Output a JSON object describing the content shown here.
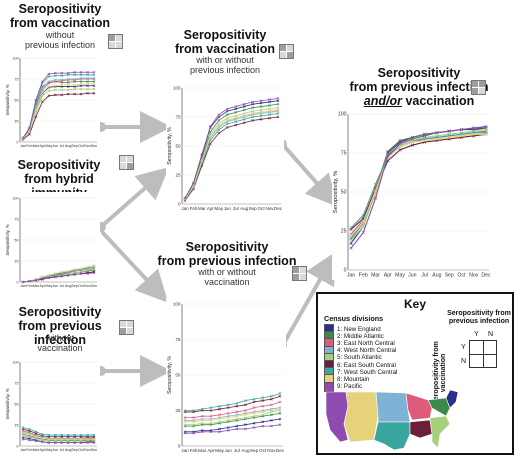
{
  "panels": {
    "vacc_only": {
      "title_lines": [
        "Seropositivity",
        "from vaccination"
      ],
      "sub_lines": [
        "without",
        "previous infection"
      ],
      "ylabel": "Seropositivity, %",
      "months": [
        "Jan",
        "Feb",
        "Mar",
        "Apr",
        "May",
        "Jun",
        "Jul",
        "Aug",
        "Sep",
        "Oct",
        "Nov",
        "Dec"
      ],
      "yticks": [
        "0",
        "25",
        "50",
        "75",
        "100"
      ]
    },
    "hybrid": {
      "title_lines": [
        "Seropositivity",
        "from hybrid immunity"
      ],
      "ylabel": "Seropositivity, %",
      "months": [
        "Jan",
        "Feb",
        "Mar",
        "Apr",
        "May",
        "Jun",
        "Jul",
        "Aug",
        "Sep",
        "Oct",
        "Nov",
        "Dec"
      ],
      "yticks": [
        "0",
        "25",
        "50",
        "75",
        "100"
      ]
    },
    "infection_only": {
      "title_lines": [
        "Seropositivity",
        "from previous infection"
      ],
      "sub_lines": [
        "without",
        "vaccination"
      ],
      "ylabel": "Seropositivity, %",
      "months": [
        "Jan",
        "Feb",
        "Mar",
        "Apr",
        "May",
        "Jun",
        "Jul",
        "Aug",
        "Sep",
        "Oct",
        "Nov",
        "Dec"
      ],
      "yticks": [
        "0",
        "25",
        "50",
        "75",
        "100"
      ]
    },
    "vacc_any": {
      "title_lines": [
        "Seropositivity",
        "from vaccination"
      ],
      "sub_lines": [
        "with or without",
        "previous infection"
      ],
      "ylabel": "Seropositivity, %",
      "months": [
        "Jan",
        "Feb",
        "Mar",
        "Apr",
        "May",
        "Jun",
        "Jul",
        "Aug",
        "Sep",
        "Oct",
        "Nov",
        "Dec"
      ],
      "yticks": [
        "0",
        "25",
        "50",
        "75",
        "100"
      ]
    },
    "infection_any": {
      "title_lines": [
        "Seropositivity",
        "from previous infection"
      ],
      "sub_lines": [
        "with or without",
        "vaccination"
      ],
      "ylabel": "Seropositivity, %",
      "months": [
        "Jan",
        "Feb",
        "Mar",
        "Apr",
        "May",
        "Jun",
        "Jul",
        "Aug",
        "Sep",
        "Oct",
        "Nov",
        "Dec"
      ],
      "yticks": [
        "0",
        "25",
        "50",
        "75",
        "100"
      ]
    },
    "either": {
      "title_lines": [
        "Seropositivity",
        "from previous infection"
      ],
      "title_line3_pre": "and/or",
      "title_line3_post": " vaccination",
      "ylabel": "Seropositivity, %",
      "months": [
        "Jan",
        "Feb",
        "Mar",
        "Apr",
        "May",
        "Jun",
        "Jul",
        "Aug",
        "Sep",
        "Oct",
        "Nov",
        "Dec"
      ],
      "yticks": [
        "0",
        "25",
        "50",
        "75",
        "100"
      ]
    }
  },
  "key": {
    "title": "Key",
    "census_title": "Census divisions",
    "divisions": [
      {
        "label": "1: New England",
        "color": "#2b2d8f"
      },
      {
        "label": "2: Middle Atlantic",
        "color": "#3b8a4a"
      },
      {
        "label": "3: East North Central",
        "color": "#e05a7b"
      },
      {
        "label": "4: West North Central",
        "color": "#7fb3d5"
      },
      {
        "label": "5: South Atlantic",
        "color": "#a6d07a"
      },
      {
        "label": "6: East South Central",
        "color": "#6b1f3a"
      },
      {
        "label": "7: West South Central",
        "color": "#3aa6a0"
      },
      {
        "label": "8: Mountain",
        "color": "#e6d27a"
      },
      {
        "label": "9: Pacific",
        "color": "#8e4bb0"
      }
    ],
    "vacc_axis": "Seropositivity from vaccination",
    "inf_title_lines": [
      "Seropositivity from",
      "previous infection"
    ],
    "grid_y": "Y",
    "grid_n": "N"
  },
  "chart_data": [
    {
      "type": "line",
      "name_ref": "vacc_only",
      "x": [
        "Jan",
        "Feb",
        "Mar",
        "Apr",
        "May",
        "Jun",
        "Jul",
        "Aug",
        "Sep",
        "Oct",
        "Nov",
        "Dec"
      ],
      "ylim": [
        0,
        100
      ],
      "series": [
        {
          "values": [
            4,
            12,
            38,
            58,
            65,
            66,
            66,
            66,
            66,
            67,
            67,
            67
          ]
        },
        {
          "values": [
            5,
            15,
            45,
            66,
            71,
            72,
            71,
            71,
            72,
            72,
            72,
            72
          ]
        },
        {
          "values": [
            4,
            13,
            40,
            62,
            70,
            72,
            73,
            74,
            74,
            75,
            75,
            75
          ]
        },
        {
          "values": [
            5,
            14,
            42,
            64,
            72,
            74,
            74,
            75,
            75,
            76,
            76,
            76
          ]
        },
        {
          "values": [
            4,
            11,
            35,
            55,
            61,
            62,
            62,
            62,
            63,
            63,
            63,
            63
          ]
        },
        {
          "values": [
            3,
            9,
            30,
            48,
            55,
            56,
            56,
            57,
            57,
            57,
            58,
            58
          ]
        },
        {
          "values": [
            5,
            16,
            48,
            70,
            78,
            79,
            79,
            80,
            80,
            80,
            80,
            80
          ]
        },
        {
          "values": [
            4,
            12,
            38,
            59,
            66,
            67,
            68,
            68,
            68,
            69,
            69,
            69
          ]
        },
        {
          "values": [
            5,
            17,
            50,
            72,
            81,
            82,
            82,
            82,
            83,
            83,
            83,
            83
          ]
        }
      ]
    },
    {
      "type": "line",
      "name_ref": "hybrid",
      "x": [
        "Jan",
        "Feb",
        "Mar",
        "Apr",
        "May",
        "Jun",
        "Jul",
        "Aug",
        "Sep",
        "Oct",
        "Nov",
        "Dec"
      ],
      "ylim": [
        0,
        100
      ],
      "series": [
        {
          "values": [
            0,
            1,
            2,
            4,
            5,
            6,
            7,
            8,
            9,
            10,
            11,
            12
          ]
        },
        {
          "values": [
            0,
            1,
            3,
            5,
            6,
            8,
            9,
            10,
            11,
            12,
            13,
            14
          ]
        },
        {
          "values": [
            0,
            1,
            3,
            5,
            7,
            9,
            10,
            11,
            13,
            14,
            15,
            16
          ]
        },
        {
          "values": [
            0,
            1,
            3,
            6,
            8,
            10,
            11,
            12,
            14,
            15,
            16,
            18
          ]
        },
        {
          "values": [
            0,
            1,
            2,
            4,
            6,
            7,
            8,
            10,
            11,
            12,
            14,
            15
          ]
        },
        {
          "values": [
            0,
            1,
            2,
            3,
            5,
            6,
            7,
            8,
            9,
            10,
            11,
            12
          ]
        },
        {
          "values": [
            0,
            1,
            3,
            5,
            7,
            9,
            11,
            12,
            14,
            15,
            17,
            18
          ]
        },
        {
          "values": [
            0,
            1,
            3,
            6,
            8,
            10,
            12,
            13,
            15,
            16,
            18,
            20
          ]
        },
        {
          "values": [
            0,
            1,
            2,
            4,
            5,
            6,
            7,
            8,
            9,
            10,
            10,
            11
          ]
        }
      ]
    },
    {
      "type": "line",
      "name_ref": "infection_only",
      "x": [
        "Jan",
        "Feb",
        "Mar",
        "Apr",
        "May",
        "Jun",
        "Jul",
        "Aug",
        "Sep",
        "Oct",
        "Nov",
        "Dec"
      ],
      "ylim": [
        0,
        100
      ],
      "series": [
        {
          "values": [
            10,
            9,
            7,
            5,
            4,
            4,
            4,
            4,
            4,
            4,
            5,
            5
          ]
        },
        {
          "values": [
            14,
            12,
            10,
            8,
            7,
            7,
            7,
            7,
            7,
            7,
            7,
            7
          ]
        },
        {
          "values": [
            18,
            16,
            13,
            10,
            9,
            9,
            9,
            9,
            9,
            9,
            9,
            9
          ]
        },
        {
          "values": [
            16,
            15,
            12,
            10,
            9,
            9,
            9,
            9,
            9,
            9,
            10,
            10
          ]
        },
        {
          "values": [
            12,
            11,
            9,
            7,
            6,
            6,
            6,
            6,
            6,
            6,
            6,
            6
          ]
        },
        {
          "values": [
            20,
            18,
            15,
            12,
            11,
            11,
            11,
            11,
            11,
            11,
            11,
            11
          ]
        },
        {
          "values": [
            22,
            20,
            17,
            14,
            13,
            13,
            13,
            13,
            13,
            13,
            13,
            13
          ]
        },
        {
          "values": [
            15,
            14,
            11,
            9,
            8,
            8,
            8,
            8,
            8,
            8,
            8,
            8
          ]
        },
        {
          "values": [
            8,
            7,
            6,
            5,
            4,
            4,
            4,
            4,
            4,
            4,
            4,
            4
          ]
        }
      ]
    },
    {
      "type": "line",
      "name_ref": "vacc_any",
      "x": [
        "Jan",
        "Feb",
        "Mar",
        "Apr",
        "May",
        "Jun",
        "Jul",
        "Aug",
        "Sep",
        "Oct",
        "Nov",
        "Dec"
      ],
      "ylim": [
        0,
        100
      ],
      "series": [
        {
          "values": [
            5,
            18,
            42,
            66,
            75,
            80,
            82,
            84,
            86,
            87,
            88,
            89
          ]
        },
        {
          "values": [
            5,
            17,
            40,
            62,
            72,
            77,
            79,
            81,
            83,
            84,
            85,
            86
          ]
        },
        {
          "values": [
            4,
            15,
            37,
            58,
            67,
            72,
            74,
            76,
            78,
            79,
            80,
            81
          ]
        },
        {
          "values": [
            4,
            15,
            36,
            57,
            66,
            71,
            73,
            75,
            77,
            78,
            79,
            80
          ]
        },
        {
          "values": [
            4,
            16,
            38,
            60,
            69,
            74,
            76,
            78,
            80,
            81,
            82,
            83
          ]
        },
        {
          "values": [
            3,
            13,
            33,
            52,
            61,
            66,
            68,
            70,
            72,
            73,
            74,
            75
          ]
        },
        {
          "values": [
            4,
            14,
            35,
            55,
            64,
            69,
            71,
            73,
            75,
            76,
            77,
            78
          ]
        },
        {
          "values": [
            4,
            15,
            37,
            58,
            67,
            72,
            74,
            76,
            78,
            79,
            80,
            81
          ]
        },
        {
          "values": [
            5,
            18,
            43,
            67,
            77,
            82,
            84,
            86,
            88,
            89,
            90,
            91
          ]
        }
      ]
    },
    {
      "type": "line",
      "name_ref": "infection_any",
      "x": [
        "Jan",
        "Feb",
        "Mar",
        "Apr",
        "May",
        "Jun",
        "Jul",
        "Aug",
        "Sep",
        "Oct",
        "Nov",
        "Dec"
      ],
      "ylim": [
        0,
        100
      ],
      "series": [
        {
          "values": [
            10,
            10,
            11,
            11,
            12,
            13,
            14,
            15,
            16,
            17,
            18,
            19
          ]
        },
        {
          "values": [
            14,
            14,
            15,
            15,
            16,
            17,
            18,
            19,
            20,
            21,
            22,
            23
          ]
        },
        {
          "values": [
            20,
            20,
            21,
            21,
            22,
            23,
            24,
            25,
            27,
            28,
            29,
            31
          ]
        },
        {
          "values": [
            18,
            18,
            19,
            19,
            20,
            21,
            22,
            23,
            24,
            25,
            26,
            27
          ]
        },
        {
          "values": [
            15,
            15,
            16,
            16,
            17,
            18,
            19,
            20,
            21,
            22,
            24,
            25
          ]
        },
        {
          "values": [
            24,
            24,
            25,
            25,
            26,
            27,
            28,
            29,
            31,
            32,
            33,
            35
          ]
        },
        {
          "values": [
            25,
            25,
            26,
            27,
            28,
            29,
            30,
            32,
            33,
            34,
            35,
            37
          ]
        },
        {
          "values": [
            17,
            17,
            18,
            18,
            19,
            20,
            21,
            22,
            23,
            24,
            25,
            26
          ]
        },
        {
          "values": [
            9,
            9,
            10,
            10,
            10,
            11,
            12,
            12,
            13,
            14,
            14,
            15
          ]
        }
      ]
    },
    {
      "type": "line",
      "name_ref": "either",
      "x": [
        "Jan",
        "Feb",
        "Mar",
        "Apr",
        "May",
        "Jun",
        "Jul",
        "Aug",
        "Sep",
        "Oct",
        "Nov",
        "Dec"
      ],
      "ylim": [
        0,
        100
      ],
      "series": [
        {
          "values": [
            17,
            28,
            50,
            75,
            82,
            85,
            87,
            88,
            89,
            90,
            90,
            91
          ]
        },
        {
          "values": [
            20,
            30,
            52,
            76,
            83,
            85,
            87,
            88,
            89,
            90,
            91,
            91
          ]
        },
        {
          "values": [
            23,
            32,
            53,
            74,
            80,
            83,
            84,
            85,
            86,
            87,
            88,
            89
          ]
        },
        {
          "values": [
            21,
            30,
            50,
            72,
            79,
            82,
            84,
            85,
            86,
            87,
            88,
            88
          ]
        },
        {
          "values": [
            19,
            28,
            49,
            73,
            80,
            83,
            85,
            86,
            87,
            88,
            89,
            90
          ]
        },
        {
          "values": [
            26,
            33,
            52,
            70,
            77,
            80,
            82,
            83,
            84,
            85,
            86,
            87
          ]
        },
        {
          "values": [
            27,
            35,
            55,
            73,
            79,
            82,
            84,
            85,
            86,
            87,
            88,
            88
          ]
        },
        {
          "values": [
            22,
            31,
            51,
            72,
            79,
            82,
            83,
            84,
            85,
            86,
            87,
            87
          ]
        },
        {
          "values": [
            14,
            24,
            46,
            73,
            81,
            84,
            86,
            88,
            89,
            90,
            91,
            92
          ]
        }
      ]
    }
  ]
}
